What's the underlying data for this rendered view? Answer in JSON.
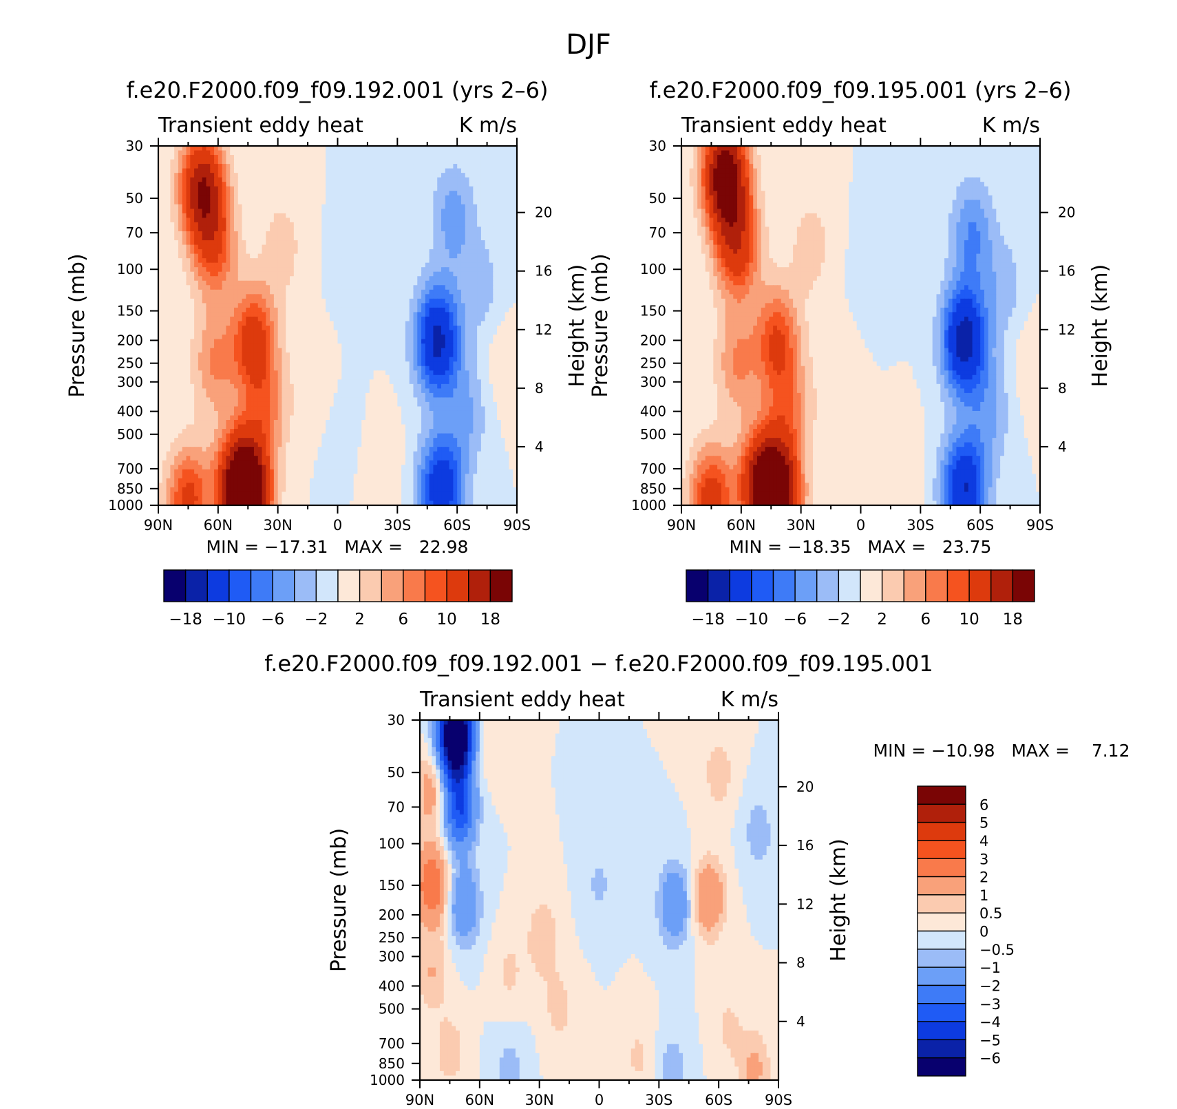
{
  "figure_title": "DJF",
  "chart_data": [
    {
      "id": "p1",
      "type": "heatmap",
      "title": "f.e20.F2000.f09_f09.192.001 (yrs 2–6)",
      "left_label": "Transient eddy heat",
      "right_label": "K m/s",
      "ylabel": "Pressure (mb)",
      "ylabel_right": "Height (km)",
      "x_ticks": [
        "90N",
        "60N",
        "30N",
        "0",
        "30S",
        "60S",
        "90S"
      ],
      "x_range": [
        90,
        -90
      ],
      "y_ticks": [
        "30",
        "50",
        "70",
        "100",
        "150",
        "200",
        "250",
        "300",
        "400",
        "500",
        "700",
        "850",
        "1000"
      ],
      "y_range_mb": [
        30,
        1000
      ],
      "height_ticks": [
        "20",
        "16",
        "12",
        "8",
        "4"
      ],
      "min_label": "MIN = −17.31   MAX =   22.98",
      "min": -17.31,
      "max": 22.98,
      "colorbar_labels": [
        "−18",
        "−10",
        "−6",
        "−2",
        "2",
        "6",
        "10",
        "18"
      ],
      "features": [
        {
          "lat": 68,
          "p": 45,
          "value": 17
        },
        {
          "lat": 62,
          "p": 80,
          "value": 9
        },
        {
          "lat": 62,
          "p": 250,
          "value": 6
        },
        {
          "lat": 42,
          "p": 200,
          "value": 12
        },
        {
          "lat": 50,
          "p": 800,
          "value": 13
        },
        {
          "lat": 45,
          "p": 920,
          "value": 22
        },
        {
          "lat": 75,
          "p": 950,
          "value": 11
        },
        {
          "lat": 36,
          "p": 400,
          "value": 6
        },
        {
          "lat": 28,
          "p": 80,
          "value": 3
        },
        {
          "lat": 12,
          "p": 300,
          "value": 1.5
        },
        {
          "lat": -50,
          "p": 200,
          "value": -15
        },
        {
          "lat": -52,
          "p": 850,
          "value": -13
        },
        {
          "lat": -58,
          "p": 60,
          "value": -5
        },
        {
          "lat": -65,
          "p": 400,
          "value": -4
        },
        {
          "lat": -72,
          "p": 120,
          "value": -3
        },
        {
          "lat": -82,
          "p": 250,
          "value": 1.5
        },
        {
          "lat": -10,
          "p": 100,
          "value": -2
        },
        {
          "lat": -2,
          "p": 500,
          "value": -1
        },
        {
          "lat": -22,
          "p": 700,
          "value": 1.5
        }
      ]
    },
    {
      "id": "p2",
      "type": "heatmap",
      "title": "f.e20.F2000.f09_f09.195.001 (yrs 2–6)",
      "left_label": "Transient eddy heat",
      "right_label": "K m/s",
      "ylabel": "Pressure (mb)",
      "ylabel_right": "Height (km)",
      "x_ticks": [
        "90N",
        "60N",
        "30N",
        "0",
        "30S",
        "60S",
        "90S"
      ],
      "x_range": [
        90,
        -90
      ],
      "y_ticks": [
        "30",
        "50",
        "70",
        "100",
        "150",
        "200",
        "250",
        "300",
        "400",
        "500",
        "700",
        "850",
        "1000"
      ],
      "y_range_mb": [
        30,
        1000
      ],
      "height_ticks": [
        "20",
        "16",
        "12",
        "8",
        "4"
      ],
      "min_label": "MIN = −18.35   MAX =   23.75",
      "min": -18.35,
      "max": 23.75,
      "colorbar_labels": [
        "−18",
        "−10",
        "−6",
        "−2",
        "2",
        "6",
        "10",
        "18"
      ],
      "features": [
        {
          "lat": 68,
          "p": 40,
          "value": 22
        },
        {
          "lat": 62,
          "p": 80,
          "value": 12
        },
        {
          "lat": 62,
          "p": 250,
          "value": 6
        },
        {
          "lat": 42,
          "p": 200,
          "value": 10
        },
        {
          "lat": 50,
          "p": 800,
          "value": 14
        },
        {
          "lat": 42,
          "p": 930,
          "value": 23
        },
        {
          "lat": 75,
          "p": 950,
          "value": 12
        },
        {
          "lat": 36,
          "p": 400,
          "value": 6
        },
        {
          "lat": 25,
          "p": 80,
          "value": 3
        },
        {
          "lat": 12,
          "p": 300,
          "value": 1.5
        },
        {
          "lat": -52,
          "p": 200,
          "value": -16
        },
        {
          "lat": -52,
          "p": 850,
          "value": -14
        },
        {
          "lat": -56,
          "p": 70,
          "value": -6
        },
        {
          "lat": -65,
          "p": 400,
          "value": -4
        },
        {
          "lat": -72,
          "p": 120,
          "value": -3
        },
        {
          "lat": -85,
          "p": 250,
          "value": 1.5
        },
        {
          "lat": -8,
          "p": 100,
          "value": -1.5
        },
        {
          "lat": -20,
          "p": 700,
          "value": 1.5
        }
      ]
    },
    {
      "id": "p3",
      "type": "heatmap",
      "title": "f.e20.F2000.f09_f09.192.001 − f.e20.F2000.f09_f09.195.001",
      "left_label": "Transient eddy heat",
      "right_label": "K m/s",
      "ylabel": "Pressure (mb)",
      "ylabel_right": "Height (km)",
      "x_ticks": [
        "90N",
        "60N",
        "30N",
        "0",
        "30S",
        "60S",
        "90S"
      ],
      "x_range": [
        90,
        -90
      ],
      "y_ticks": [
        "30",
        "50",
        "70",
        "100",
        "150",
        "200",
        "250",
        "300",
        "400",
        "500",
        "700",
        "850",
        "1000"
      ],
      "y_range_mb": [
        30,
        1000
      ],
      "height_ticks": [
        "20",
        "16",
        "12",
        "8",
        "4"
      ],
      "min_label": "MIN = −10.98   MAX =    7.12",
      "min": -10.98,
      "max": 7.12,
      "colorbar_labels": [
        "6",
        "5",
        "4",
        "3",
        "2",
        "1",
        "0.5",
        "0",
        "−0.5",
        "−1",
        "−2",
        "−3",
        "−4",
        "−5",
        "−6"
      ],
      "features": [
        {
          "lat": 72,
          "p": 35,
          "value": -10
        },
        {
          "lat": 70,
          "p": 70,
          "value": -4
        },
        {
          "lat": 68,
          "p": 180,
          "value": -2
        },
        {
          "lat": 84,
          "p": 150,
          "value": 3
        },
        {
          "lat": 84,
          "p": 60,
          "value": 1.5
        },
        {
          "lat": 84,
          "p": 350,
          "value": 1
        },
        {
          "lat": 28,
          "p": 250,
          "value": 1
        },
        {
          "lat": 20,
          "p": 500,
          "value": 0.7
        },
        {
          "lat": 45,
          "p": 350,
          "value": 0.6
        },
        {
          "lat": 75,
          "p": 750,
          "value": 0.8
        },
        {
          "lat": 58,
          "p": 40,
          "value": 0.5
        },
        {
          "lat": 45,
          "p": 900,
          "value": -0.7
        },
        {
          "lat": 0,
          "p": 150,
          "value": -0.6
        },
        {
          "lat": -38,
          "p": 180,
          "value": -2
        },
        {
          "lat": -37,
          "p": 900,
          "value": -0.8
        },
        {
          "lat": -55,
          "p": 170,
          "value": 2
        },
        {
          "lat": -60,
          "p": 50,
          "value": 0.8
        },
        {
          "lat": -80,
          "p": 90,
          "value": -0.8
        },
        {
          "lat": -78,
          "p": 900,
          "value": 1.2
        },
        {
          "lat": -65,
          "p": 600,
          "value": 0.6
        },
        {
          "lat": -20,
          "p": 800,
          "value": 0.6
        }
      ]
    }
  ],
  "colorbar_top": {
    "colors": [
      "#08006e",
      "#0a22a8",
      "#0d3be0",
      "#1f5bf5",
      "#3e7bf7",
      "#6c9ff7",
      "#9bbcf7",
      "#d2e6fb",
      "#fde8d8",
      "#fbcbb0",
      "#f9a17a",
      "#f97a4b",
      "#f5531f",
      "#dd3a0d",
      "#b0200b",
      "#7a0505"
    ]
  },
  "colorbar_diff": {
    "colors": [
      "#7a0505",
      "#b0200b",
      "#dd3a0d",
      "#f5531f",
      "#f97a4b",
      "#f9a17a",
      "#fbcbb0",
      "#fde8d8",
      "#d2e6fb",
      "#9bbcf7",
      "#6c9ff7",
      "#3e7bf7",
      "#1f5bf5",
      "#0d3be0",
      "#0a22a8",
      "#08006e"
    ]
  }
}
